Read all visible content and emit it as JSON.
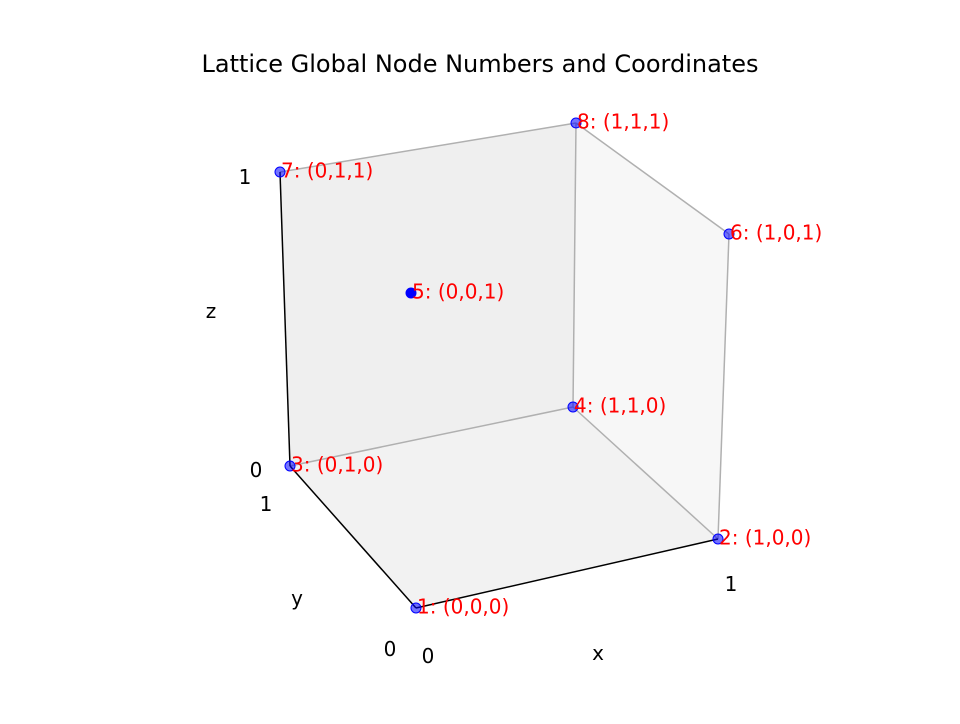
{
  "chart_data": {
    "type": "scatter",
    "projection": "3d",
    "title": "Lattice Global Node Numbers and Coordinates",
    "xlabel": "x",
    "ylabel": "y",
    "zlabel": "z",
    "xlim": [
      0,
      1
    ],
    "ylim": [
      0,
      1
    ],
    "zlim": [
      0,
      1
    ],
    "xticks": [
      "0",
      "1"
    ],
    "yticks": [
      "0",
      "1"
    ],
    "zticks": [
      "0",
      "1"
    ],
    "grid": false,
    "point_color": "#0000ff",
    "label_color": "#ff0000",
    "edge_color": "#000000",
    "face_color": "#f2f2f2",
    "points": [
      {
        "id": 1,
        "x": 0,
        "y": 0,
        "z": 0,
        "label": "1: (0,0,0)"
      },
      {
        "id": 2,
        "x": 1,
        "y": 0,
        "z": 0,
        "label": "2: (1,0,0)"
      },
      {
        "id": 3,
        "x": 0,
        "y": 1,
        "z": 0,
        "label": "3: (0,1,0)"
      },
      {
        "id": 4,
        "x": 1,
        "y": 1,
        "z": 0,
        "label": "4: (1,1,0)"
      },
      {
        "id": 5,
        "x": 0,
        "y": 0,
        "z": 1,
        "label": "5: (0,0,1)"
      },
      {
        "id": 6,
        "x": 1,
        "y": 0,
        "z": 1,
        "label": "6: (1,0,1)"
      },
      {
        "id": 7,
        "x": 0,
        "y": 1,
        "z": 1,
        "label": "7: (0,1,1)"
      },
      {
        "id": 8,
        "x": 1,
        "y": 1,
        "z": 1,
        "label": "8: (1,1,1)"
      }
    ]
  }
}
